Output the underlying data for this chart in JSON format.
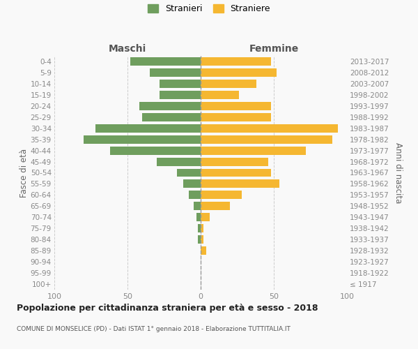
{
  "age_groups": [
    "100+",
    "95-99",
    "90-94",
    "85-89",
    "80-84",
    "75-79",
    "70-74",
    "65-69",
    "60-64",
    "55-59",
    "50-54",
    "45-49",
    "40-44",
    "35-39",
    "30-34",
    "25-29",
    "20-24",
    "15-19",
    "10-14",
    "5-9",
    "0-4"
  ],
  "birth_years": [
    "≤ 1917",
    "1918-1922",
    "1923-1927",
    "1928-1932",
    "1933-1937",
    "1938-1942",
    "1943-1947",
    "1948-1952",
    "1953-1957",
    "1958-1962",
    "1963-1967",
    "1968-1972",
    "1973-1977",
    "1978-1982",
    "1983-1987",
    "1988-1992",
    "1993-1997",
    "1998-2002",
    "2003-2007",
    "2008-2012",
    "2013-2017"
  ],
  "maschi": [
    0,
    0,
    0,
    0,
    2,
    2,
    3,
    5,
    8,
    12,
    16,
    30,
    62,
    80,
    72,
    40,
    42,
    28,
    28,
    35,
    48
  ],
  "femmine": [
    0,
    0,
    0,
    4,
    2,
    2,
    6,
    20,
    28,
    54,
    48,
    46,
    72,
    90,
    94,
    48,
    48,
    26,
    38,
    52,
    48
  ],
  "maschi_color": "#6f9e5e",
  "femmine_color": "#f5b731",
  "background_color": "#f9f9f9",
  "grid_color": "#cccccc",
  "title": "Popolazione per cittadinanza straniera per età e sesso - 2018",
  "subtitle": "COMUNE DI MONSELICE (PD) - Dati ISTAT 1° gennaio 2018 - Elaborazione TUTTITALIA.IT",
  "label_maschi_top": "Maschi",
  "label_femmine_top": "Femmine",
  "ylabel_left": "Fasce di età",
  "ylabel_right": "Anni di nascita",
  "legend_maschi": "Stranieri",
  "legend_femmine": "Straniere",
  "xlim": 100,
  "bar_height": 0.75
}
